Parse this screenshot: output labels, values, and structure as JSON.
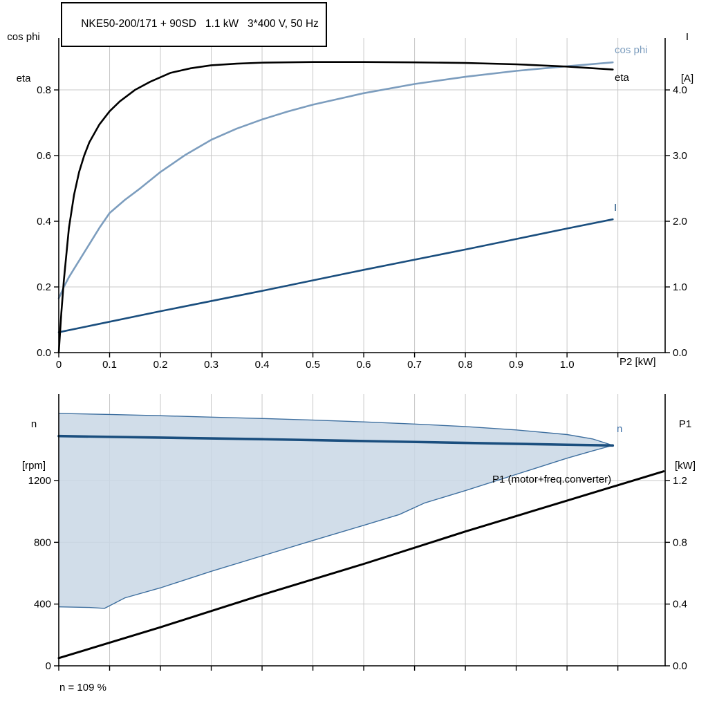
{
  "colors": {
    "black": "#000000",
    "steel_blue": "#7C9DBE",
    "dark_blue": "#1A4E7E",
    "band_fill": "#C9D7E5",
    "band_edge": "#3E6F9F",
    "grid": "#C8C8C8",
    "axis": "#000000"
  },
  "chart_data": [
    {
      "type": "line",
      "title": "NKE50-200/171 + 90SD   1.1 kW   3*400 V, 50 Hz",
      "xlabel": "P2 [kW]",
      "ylabel_left": "cos phi / eta",
      "ylabel_right": "I [A]",
      "xlim": [
        0,
        1.193
      ],
      "ylim_left": [
        0,
        0.958
      ],
      "ylim_right": [
        0,
        4.79
      ],
      "grid": true,
      "x_ticks": {
        "values": [
          0,
          0.1,
          0.2,
          0.3,
          0.4,
          0.5,
          0.6,
          0.7,
          0.8,
          0.9,
          1.0,
          1.1
        ],
        "labels": [
          "0",
          "0.1",
          "0.2",
          "0.3",
          "0.4",
          "0.5",
          "0.6",
          "0.7",
          "0.8",
          "0.9",
          "1.0",
          ""
        ]
      },
      "y_ticks_left": {
        "values": [
          0,
          0.2,
          0.4,
          0.6,
          0.8
        ],
        "labels": [
          "0.0",
          "0.2",
          "0.4",
          "0.6",
          "0.8"
        ]
      },
      "y_ticks_right": {
        "values": [
          0,
          1,
          2,
          3,
          4
        ],
        "labels": [
          "0.0",
          "1.0",
          "2.0",
          "3.0",
          "4.0"
        ]
      },
      "labels": {
        "y_left_1": "cos phi",
        "y_left_2": "eta",
        "y_right_1": "I",
        "y_right_2": "[A]",
        "x": "P2 [kW]",
        "curve_cos_phi": "cos phi",
        "curve_eta": "eta",
        "curve_i": "I"
      },
      "series": [
        {
          "name": "cos phi",
          "axis": "left",
          "color_key": "steel_blue",
          "width": 2.6,
          "x": [
            0,
            0.01,
            0.02,
            0.04,
            0.06,
            0.08,
            0.1,
            0.13,
            0.16,
            0.2,
            0.25,
            0.3,
            0.35,
            0.4,
            0.45,
            0.5,
            0.6,
            0.7,
            0.8,
            0.9,
            1.0,
            1.09
          ],
          "y": [
            0.165,
            0.2,
            0.23,
            0.28,
            0.33,
            0.38,
            0.425,
            0.465,
            0.5,
            0.55,
            0.603,
            0.648,
            0.682,
            0.71,
            0.734,
            0.755,
            0.79,
            0.818,
            0.84,
            0.858,
            0.872,
            0.884
          ]
        },
        {
          "name": "I",
          "axis": "right",
          "color_key": "dark_blue",
          "width": 2.6,
          "x": [
            0,
            0.2,
            0.4,
            0.6,
            0.8,
            1.0,
            1.09
          ],
          "y": [
            0.31,
            0.63,
            0.94,
            1.26,
            1.57,
            1.89,
            2.03
          ]
        },
        {
          "name": "eta",
          "axis": "left",
          "color_key": "black",
          "width": 2.6,
          "x": [
            0,
            0.005,
            0.01,
            0.02,
            0.03,
            0.04,
            0.05,
            0.06,
            0.08,
            0.1,
            0.12,
            0.15,
            0.18,
            0.22,
            0.26,
            0.3,
            0.35,
            0.4,
            0.5,
            0.6,
            0.7,
            0.8,
            0.9,
            1.0,
            1.09
          ],
          "y": [
            0,
            0.12,
            0.22,
            0.38,
            0.48,
            0.55,
            0.6,
            0.64,
            0.695,
            0.735,
            0.765,
            0.8,
            0.825,
            0.852,
            0.866,
            0.875,
            0.88,
            0.883,
            0.885,
            0.885,
            0.884,
            0.882,
            0.878,
            0.871,
            0.862
          ]
        }
      ]
    },
    {
      "type": "line",
      "title": "",
      "xlabel": "",
      "ylabel_left": "n [rpm]",
      "ylabel_right": "P1 [kW]",
      "xlim": [
        0,
        1.193
      ],
      "ylim_left": [
        0,
        1760
      ],
      "ylim_right": [
        0,
        1.76
      ],
      "grid": true,
      "x_ticks": {
        "values": [
          0,
          0.1,
          0.2,
          0.3,
          0.4,
          0.5,
          0.6,
          0.7,
          0.8,
          0.9,
          1.0,
          1.1
        ],
        "labels": []
      },
      "y_ticks_left": {
        "values": [
          0,
          400,
          800,
          1200
        ],
        "labels": [
          "0",
          "400",
          "800",
          "1200"
        ]
      },
      "y_ticks_right": {
        "values": [
          0,
          0.4,
          0.8,
          1.2
        ],
        "labels": [
          "0.0",
          "0.4",
          "0.8",
          "1.2"
        ]
      },
      "labels": {
        "y_left_1": "n",
        "y_left_2": "[rpm]",
        "y_right_1": "P1",
        "y_right_2": "[kW]",
        "curve_n": "n",
        "curve_p1": "P1 (motor+freq.converter)",
        "annotation": "n = 109 %"
      },
      "band": {
        "name": "speed-control-range",
        "fill_key": "band_fill",
        "edge_key": "band_edge",
        "upper_x": [
          0,
          0.1,
          0.2,
          0.3,
          0.4,
          0.5,
          0.6,
          0.7,
          0.8,
          0.9,
          1.0,
          1.05,
          1.09
        ],
        "upper_y": [
          1635,
          1628,
          1620,
          1611,
          1602,
          1592,
          1580,
          1566,
          1550,
          1528,
          1498,
          1470,
          1428
        ],
        "lower_x": [
          0,
          0.06,
          0.09,
          0.13,
          0.2,
          0.3,
          0.4,
          0.5,
          0.6,
          0.67,
          0.72,
          0.8,
          0.9,
          1.0,
          1.05,
          1.09
        ],
        "lower_y": [
          382,
          378,
          372,
          440,
          505,
          612,
          712,
          812,
          910,
          980,
          1055,
          1135,
          1240,
          1345,
          1392,
          1428
        ]
      },
      "series": [
        {
          "name": "P1 (motor+freq.converter)",
          "axis": "right",
          "color_key": "black",
          "width": 3,
          "x": [
            0,
            0.2,
            0.4,
            0.6,
            0.8,
            1.0,
            1.19
          ],
          "y": [
            0.05,
            0.25,
            0.46,
            0.66,
            0.87,
            1.07,
            1.26
          ]
        },
        {
          "name": "n",
          "axis": "left",
          "color_key": "dark_blue",
          "width": 3.6,
          "x": [
            0,
            0.2,
            0.4,
            0.6,
            0.8,
            1.0,
            1.09
          ],
          "y": [
            1488,
            1478,
            1468,
            1456,
            1444,
            1432,
            1427
          ]
        }
      ]
    }
  ]
}
